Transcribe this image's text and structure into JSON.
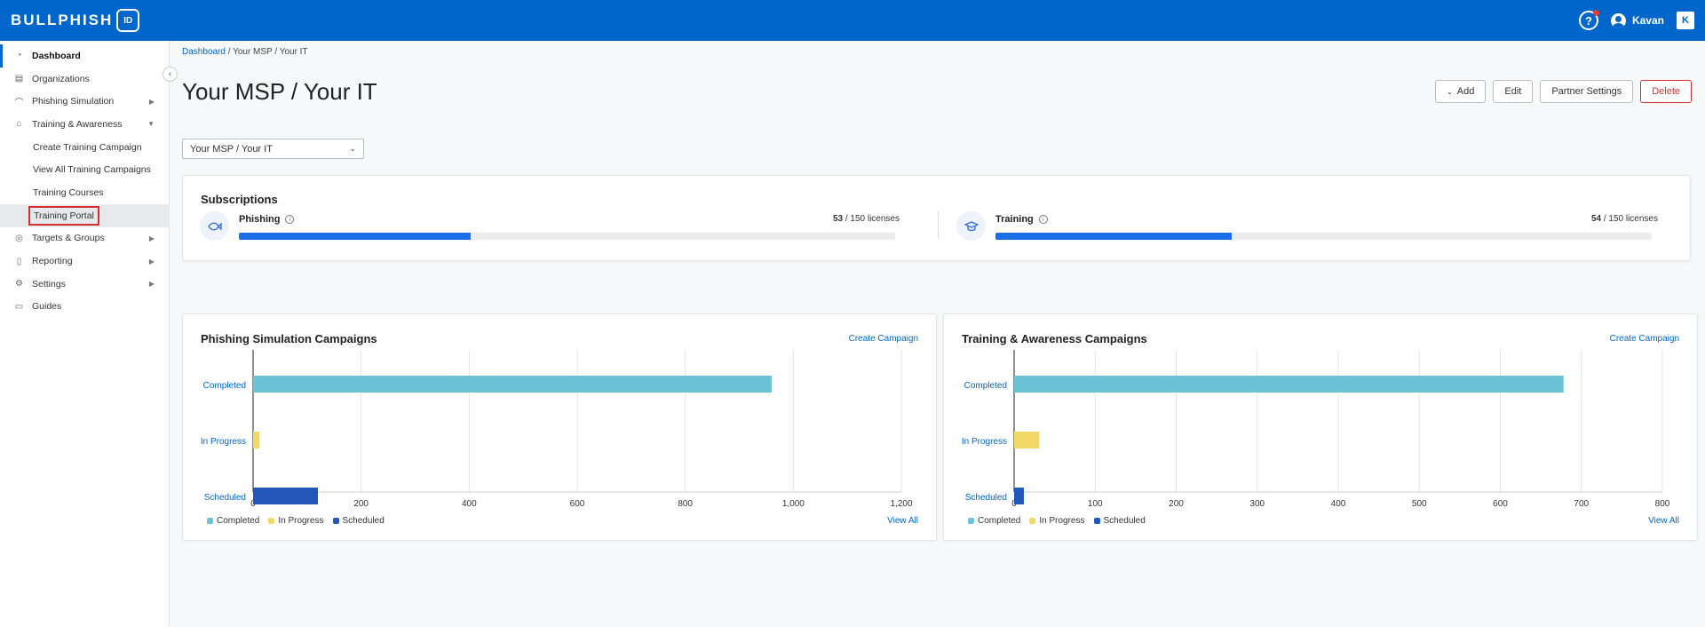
{
  "topbar": {
    "logo_text": "BULLPHISH",
    "logo_badge": "ID",
    "help_glyph": "?",
    "user_name": "Kavan",
    "brand_glyph": "K"
  },
  "sidebar": {
    "items": [
      {
        "label": "Dashboard",
        "icon": "speedometer-icon"
      },
      {
        "label": "Organizations",
        "icon": "building-icon"
      },
      {
        "label": "Phishing Simulation",
        "icon": "hook-icon"
      },
      {
        "label": "Training & Awareness",
        "icon": "graduation-cap-icon"
      },
      {
        "label": "Create Training Campaign"
      },
      {
        "label": "View All Training Campaigns"
      },
      {
        "label": "Training Courses"
      },
      {
        "label": "Training Portal"
      },
      {
        "label": "Targets & Groups",
        "icon": "target-icon"
      },
      {
        "label": "Reporting",
        "icon": "report-icon"
      },
      {
        "label": "Settings",
        "icon": "gear-icon"
      },
      {
        "label": "Guides",
        "icon": "book-icon"
      }
    ]
  },
  "breadcrumb": {
    "root": "Dashboard",
    "rest": " / Your MSP / Your IT"
  },
  "page": {
    "title": "Your MSP / Your IT"
  },
  "actions": {
    "add": "Add",
    "edit": "Edit",
    "partner_settings": "Partner Settings",
    "delete": "Delete"
  },
  "org_select": {
    "value": "Your MSP / Your IT"
  },
  "subscriptions": {
    "title": "Subscriptions",
    "phishing": {
      "name": "Phishing",
      "used": "53",
      "total_text": " / 150 licenses",
      "fraction": 0.3533
    },
    "training": {
      "name": "Training",
      "used": "54",
      "total_text": " / 150 licenses",
      "fraction": 0.36
    }
  },
  "phishing_card": {
    "title": "Phishing Simulation Campaigns",
    "create_link": "Create Campaign",
    "view_all": "View All"
  },
  "training_card": {
    "title": "Training & Awareness Campaigns",
    "create_link": "Create Campaign",
    "view_all": "View All"
  },
  "colors": {
    "completed": "#6cc3d5",
    "in_progress": "#f2d864",
    "scheduled": "#2256b8",
    "accent": "#0066cc"
  },
  "chart_data": [
    {
      "type": "bar",
      "orientation": "horizontal",
      "title": "Phishing Simulation Campaigns",
      "categories": [
        "Completed",
        "In Progress",
        "Scheduled"
      ],
      "values": [
        960,
        12,
        120
      ],
      "xlim": [
        0,
        1200
      ],
      "xticks": [
        0,
        200,
        400,
        600,
        800,
        1000,
        1200
      ],
      "xtick_labels": [
        "0",
        "200",
        "400",
        "600",
        "800",
        "1,000",
        "1,200"
      ],
      "legend": [
        "Completed",
        "In Progress",
        "Scheduled"
      ],
      "legend_position": "bottom-left",
      "grid": true
    },
    {
      "type": "bar",
      "orientation": "horizontal",
      "title": "Training & Awareness Campaigns",
      "categories": [
        "Completed",
        "In Progress",
        "Scheduled"
      ],
      "values": [
        678,
        31,
        12
      ],
      "xlim": [
        0,
        800
      ],
      "xticks": [
        0,
        100,
        200,
        300,
        400,
        500,
        600,
        700,
        800
      ],
      "xtick_labels": [
        "0",
        "100",
        "200",
        "300",
        "400",
        "500",
        "600",
        "700",
        "800"
      ],
      "legend": [
        "Completed",
        "In Progress",
        "Scheduled"
      ],
      "legend_position": "bottom-left",
      "grid": true
    }
  ]
}
